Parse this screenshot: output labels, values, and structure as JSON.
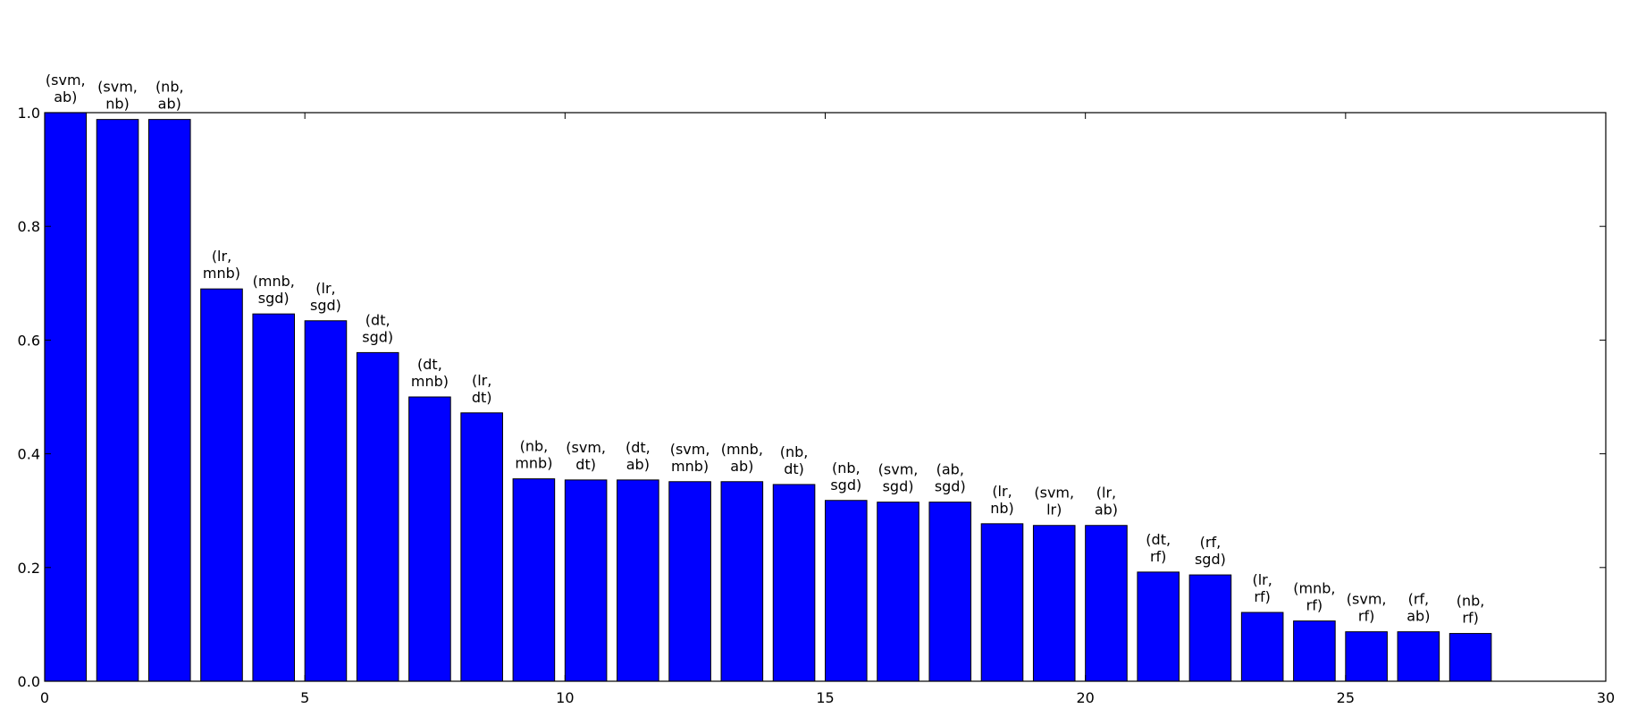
{
  "chart_data": {
    "type": "bar",
    "title": "",
    "xlabel": "",
    "ylabel": "",
    "xlim": [
      0,
      30
    ],
    "ylim": [
      0.0,
      1.0
    ],
    "xticks": [
      0,
      5,
      10,
      15,
      20,
      25,
      30
    ],
    "yticks": [
      0.0,
      0.2,
      0.4,
      0.6,
      0.8,
      1.0
    ],
    "xtick_labels": [
      "0",
      "5",
      "10",
      "15",
      "20",
      "25",
      "30"
    ],
    "ytick_labels": [
      "0.0",
      "0.2",
      "0.4",
      "0.6",
      "0.8",
      "1.0"
    ],
    "grid": false,
    "bar_color": "#0000ff",
    "bar_edge_color": "#000000",
    "bar_width": 0.8,
    "bars": [
      {
        "x": 0,
        "value": 1.0,
        "label": [
          "(svm,",
          "ab)"
        ]
      },
      {
        "x": 1,
        "value": 0.988,
        "label": [
          "(svm,",
          "nb)"
        ]
      },
      {
        "x": 2,
        "value": 0.988,
        "label": [
          "(nb,",
          "ab)"
        ]
      },
      {
        "x": 3,
        "value": 0.69,
        "label": [
          "(lr,",
          "mnb)"
        ]
      },
      {
        "x": 4,
        "value": 0.646,
        "label": [
          "(mnb,",
          "sgd)"
        ]
      },
      {
        "x": 5,
        "value": 0.634,
        "label": [
          "(lr,",
          "sgd)"
        ]
      },
      {
        "x": 6,
        "value": 0.578,
        "label": [
          "(dt,",
          "sgd)"
        ]
      },
      {
        "x": 7,
        "value": 0.5,
        "label": [
          "(dt,",
          "mnb)"
        ]
      },
      {
        "x": 8,
        "value": 0.472,
        "label": [
          "(lr,",
          "dt)"
        ]
      },
      {
        "x": 9,
        "value": 0.356,
        "label": [
          "(nb,",
          "mnb)"
        ]
      },
      {
        "x": 10,
        "value": 0.354,
        "label": [
          "(svm,",
          "dt)"
        ]
      },
      {
        "x": 11,
        "value": 0.354,
        "label": [
          "(dt,",
          "ab)"
        ]
      },
      {
        "x": 12,
        "value": 0.351,
        "label": [
          "(svm,",
          "mnb)"
        ]
      },
      {
        "x": 13,
        "value": 0.351,
        "label": [
          "(mnb,",
          "ab)"
        ]
      },
      {
        "x": 14,
        "value": 0.346,
        "label": [
          "(nb,",
          "dt)"
        ]
      },
      {
        "x": 15,
        "value": 0.318,
        "label": [
          "(nb,",
          "sgd)"
        ]
      },
      {
        "x": 16,
        "value": 0.315,
        "label": [
          "(svm,",
          "sgd)"
        ]
      },
      {
        "x": 17,
        "value": 0.315,
        "label": [
          "(ab,",
          "sgd)"
        ]
      },
      {
        "x": 18,
        "value": 0.277,
        "label": [
          "(lr,",
          "nb)"
        ]
      },
      {
        "x": 19,
        "value": 0.274,
        "label": [
          "(svm,",
          "lr)"
        ]
      },
      {
        "x": 20,
        "value": 0.274,
        "label": [
          "(lr,",
          "ab)"
        ]
      },
      {
        "x": 21,
        "value": 0.192,
        "label": [
          "(dt,",
          "rf)"
        ]
      },
      {
        "x": 22,
        "value": 0.187,
        "label": [
          "(rf,",
          "sgd)"
        ]
      },
      {
        "x": 23,
        "value": 0.121,
        "label": [
          "(lr,",
          "rf)"
        ]
      },
      {
        "x": 24,
        "value": 0.106,
        "label": [
          "(mnb,",
          "rf)"
        ]
      },
      {
        "x": 25,
        "value": 0.087,
        "label": [
          "(svm,",
          "rf)"
        ]
      },
      {
        "x": 26,
        "value": 0.087,
        "label": [
          "(rf,",
          "ab)"
        ]
      },
      {
        "x": 27,
        "value": 0.084,
        "label": [
          "(nb,",
          "rf)"
        ]
      }
    ]
  }
}
